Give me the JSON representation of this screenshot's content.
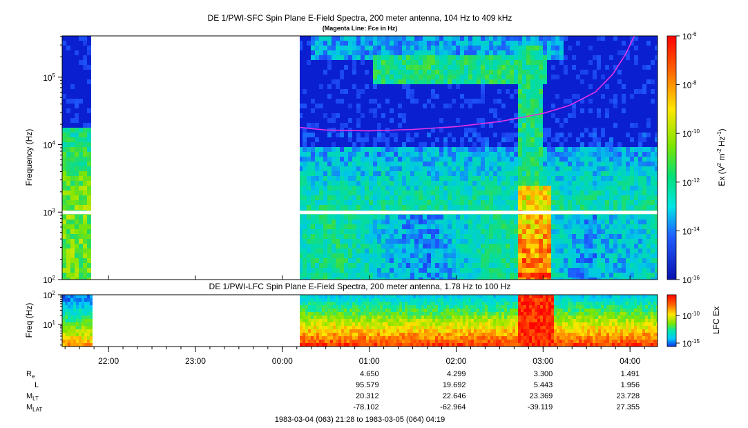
{
  "colors": {
    "magenta_line": "#e633e6",
    "gap_white": "#ffffff",
    "background_low": "#0a1fd0"
  },
  "chart_data": [
    {
      "type": "heatmap",
      "title": "DE 1/PWI-SFC  Spin Plane E-Field Spectra, 200 meter antenna, 104 Hz to 409 kHz",
      "subtitle": "(Magenta Line: Fce in Hz)",
      "ylabel": "Frequency (Hz)",
      "ylog": true,
      "ylim": [
        100,
        409000
      ],
      "yticks": [
        {
          "base": "10",
          "exp": "2",
          "value": 100
        },
        {
          "base": "10",
          "exp": "3",
          "value": 1000
        },
        {
          "base": "10",
          "exp": "4",
          "value": 10000
        },
        {
          "base": "10",
          "exp": "5",
          "value": 100000
        }
      ],
      "colorbar": {
        "label": "Ex (V2 m-2 Hz-1)",
        "label_parts": [
          "Ex (V",
          "2",
          " m",
          "-2",
          " Hz",
          "-1",
          ")"
        ],
        "log": true,
        "range": [
          1e-16,
          1e-06
        ],
        "ticks": [
          {
            "base": "10",
            "exp": "-6"
          },
          {
            "base": "10",
            "exp": "-8"
          },
          {
            "base": "10",
            "exp": "-10"
          },
          {
            "base": "10",
            "exp": "-12"
          },
          {
            "base": "10",
            "exp": "-14"
          },
          {
            "base": "10",
            "exp": "-16"
          }
        ]
      },
      "data_gap": {
        "start": "21:48",
        "end": "00:12"
      },
      "fce_line": {
        "name": "Fce",
        "x_hours": [
          0.2,
          0.5,
          1.0,
          1.5,
          2.0,
          2.5,
          3.0,
          3.3,
          3.6,
          3.8,
          3.95,
          4.05
        ],
        "y_hz": [
          18000,
          16500,
          16000,
          16800,
          18500,
          22000,
          29000,
          38000,
          60000,
          110000,
          220000,
          409000
        ]
      }
    },
    {
      "type": "heatmap",
      "title": "DE 1/PWI-LFC  Spin Plane E-Field Spectra, 200 meter antenna, 1.78 Hz to 100 Hz",
      "ylabel": "Freq (Hz)",
      "ylog": true,
      "ylim": [
        1.78,
        100
      ],
      "yticks": [
        {
          "base": "10",
          "exp": "1",
          "value": 10
        },
        {
          "base": "10",
          "exp": "2",
          "value": 100
        }
      ],
      "colorbar": {
        "label": "LFC Ex",
        "log": true,
        "ticks": [
          {
            "base": "10",
            "exp": "-10"
          },
          {
            "base": "10",
            "exp": "-15"
          }
        ]
      },
      "data_gap": {
        "start": "21:48",
        "end": "00:12"
      }
    }
  ],
  "time_axis": {
    "start": "21:28",
    "end": "04:19",
    "ticks": [
      "22:00",
      "23:00",
      "00:00",
      "01:00",
      "02:00",
      "03:00",
      "04:00"
    ],
    "ephemeris": {
      "rows": [
        {
          "label": "R",
          "sub": "e",
          "values": [
            "4.650",
            "4.299",
            "3.300",
            "1.491"
          ]
        },
        {
          "label": "L",
          "sub": "",
          "values": [
            "95.579",
            "19.692",
            "5.443",
            "1.956"
          ]
        },
        {
          "label": "M",
          "sub": "LT",
          "values": [
            "20.312",
            "22.646",
            "23.369",
            "23.728"
          ]
        },
        {
          "label": "M",
          "sub": "LAT",
          "values": [
            "-78.102",
            "-62.964",
            "-39.119",
            "27.355"
          ]
        }
      ]
    },
    "footer": "1983-03-04 (063) 21:28 to 1983-03-05 (064) 04:19"
  }
}
